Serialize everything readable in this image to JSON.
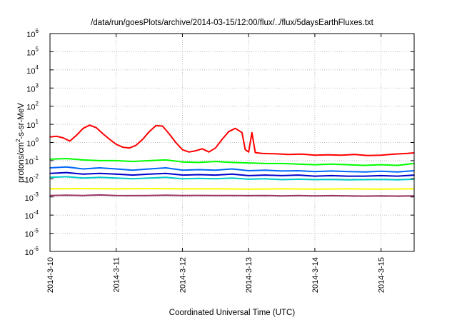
{
  "chart_data": {
    "type": "line",
    "title": "/data/run/goesPlots/archive/2014-03-15/12:00/flux/../flux/5daysEarthFluxes.txt",
    "xlabel": "Coordinated Universal Time (UTC)",
    "ylabel": "protons/cm²-s-sr-MeV",
    "ylabel_parts": {
      "pre": "protons/cm",
      "sup": "2",
      "post": "-s-sr-MeV"
    },
    "xlim": [
      0,
      5.5
    ],
    "ylim_log10": [
      -6,
      6
    ],
    "yscale": "log",
    "grid": true,
    "x_tick_positions": [
      0,
      1,
      2,
      3,
      4,
      5
    ],
    "x_tick_labels": [
      "2014-3-10",
      "2014-3-11",
      "2014-3-12",
      "2014-3-13",
      "2014-3-14",
      "2014-3-15"
    ],
    "y_tick_exponents": [
      -6,
      -5,
      -4,
      -3,
      -2,
      -1,
      0,
      1,
      2,
      3,
      4,
      5,
      6
    ],
    "y_tick_base": "10",
    "series": [
      {
        "color": "#ff0000",
        "x": [
          0,
          0.1,
          0.2,
          0.3,
          0.4,
          0.5,
          0.6,
          0.7,
          0.8,
          0.9,
          1.0,
          1.1,
          1.2,
          1.3,
          1.4,
          1.5,
          1.6,
          1.7,
          1.8,
          1.9,
          2.0,
          2.1,
          2.2,
          2.3,
          2.4,
          2.5,
          2.6,
          2.7,
          2.8,
          2.9,
          2.95,
          3.0,
          3.05,
          3.1,
          3.2,
          3.4,
          3.6,
          3.8,
          4.0,
          4.2,
          4.4,
          4.6,
          4.8,
          5.0,
          5.2,
          5.4,
          5.5
        ],
        "y": [
          2.0,
          2.2,
          1.8,
          1.2,
          2.5,
          6.0,
          9.0,
          6.5,
          3.0,
          1.5,
          0.8,
          0.55,
          0.5,
          0.7,
          1.5,
          4.0,
          8.5,
          8.0,
          3.0,
          1.0,
          0.4,
          0.3,
          0.35,
          0.45,
          0.3,
          0.5,
          1.5,
          4.0,
          6.0,
          3.5,
          0.4,
          0.3,
          3.5,
          0.28,
          0.25,
          0.24,
          0.22,
          0.23,
          0.2,
          0.21,
          0.2,
          0.22,
          0.19,
          0.2,
          0.23,
          0.25,
          0.27
        ]
      },
      {
        "color": "#00ff00",
        "x": [
          0,
          0.25,
          0.5,
          0.75,
          1.0,
          1.25,
          1.5,
          1.75,
          2.0,
          2.25,
          2.5,
          2.75,
          3.0,
          3.25,
          3.5,
          3.75,
          4.0,
          4.25,
          4.5,
          4.75,
          5.0,
          5.25,
          5.5
        ],
        "y": [
          0.12,
          0.13,
          0.11,
          0.1,
          0.1,
          0.09,
          0.1,
          0.11,
          0.085,
          0.08,
          0.09,
          0.08,
          0.075,
          0.07,
          0.07,
          0.065,
          0.06,
          0.065,
          0.06,
          0.055,
          0.06,
          0.055,
          0.07
        ]
      },
      {
        "color": "#0066ff",
        "x": [
          0,
          0.25,
          0.5,
          0.75,
          1.0,
          1.25,
          1.5,
          1.75,
          2.0,
          2.25,
          2.5,
          2.75,
          3.0,
          3.25,
          3.5,
          3.75,
          4.0,
          4.25,
          4.5,
          4.75,
          5.0,
          5.25,
          5.5
        ],
        "y": [
          0.04,
          0.045,
          0.035,
          0.04,
          0.035,
          0.03,
          0.035,
          0.04,
          0.03,
          0.032,
          0.03,
          0.035,
          0.028,
          0.03,
          0.027,
          0.028,
          0.025,
          0.027,
          0.025,
          0.024,
          0.026,
          0.024,
          0.028
        ]
      },
      {
        "color": "#00cccc",
        "x": [
          0,
          0.25,
          0.5,
          0.75,
          1.0,
          1.25,
          1.5,
          1.75,
          2.0,
          2.25,
          2.5,
          2.75,
          3.0,
          3.25,
          3.5,
          3.75,
          4.0,
          4.25,
          4.5,
          4.75,
          5.0,
          5.25,
          5.5
        ],
        "y": [
          0.012,
          0.013,
          0.011,
          0.012,
          0.011,
          0.01,
          0.011,
          0.012,
          0.01,
          0.0105,
          0.01,
          0.011,
          0.0095,
          0.01,
          0.009,
          0.0095,
          0.009,
          0.0092,
          0.0088,
          0.009,
          0.0092,
          0.0088,
          0.0095
        ]
      },
      {
        "color": "#0000cc",
        "x": [
          0,
          0.25,
          0.5,
          0.75,
          1.0,
          1.25,
          1.5,
          1.75,
          2.0,
          2.25,
          2.5,
          2.75,
          3.0,
          3.25,
          3.5,
          3.75,
          4.0,
          4.25,
          4.5,
          4.75,
          5.0,
          5.25,
          5.5
        ],
        "y": [
          0.02,
          0.022,
          0.018,
          0.02,
          0.018,
          0.016,
          0.018,
          0.02,
          0.016,
          0.017,
          0.016,
          0.018,
          0.015,
          0.016,
          0.015,
          0.016,
          0.014,
          0.015,
          0.014,
          0.014,
          0.015,
          0.014,
          0.016
        ]
      },
      {
        "color": "#ffff00",
        "x": [
          0,
          0.5,
          1.0,
          1.5,
          2.0,
          2.5,
          3.0,
          3.5,
          4.0,
          4.5,
          5.0,
          5.5
        ],
        "y": [
          0.0028,
          0.0029,
          0.0028,
          0.0029,
          0.0028,
          0.0028,
          0.0027,
          0.0028,
          0.0027,
          0.0028,
          0.0027,
          0.0028
        ]
      },
      {
        "color": "#993366",
        "x": [
          0,
          0.25,
          0.5,
          0.75,
          1.0,
          1.25,
          1.5,
          1.75,
          2.0,
          2.25,
          2.5,
          2.75,
          3.0,
          3.25,
          3.5,
          3.75,
          4.0,
          4.25,
          4.5,
          4.75,
          5.0,
          5.25,
          5.5
        ],
        "y": [
          0.0012,
          0.00125,
          0.0012,
          0.0013,
          0.0012,
          0.00118,
          0.0012,
          0.00125,
          0.0012,
          0.00122,
          0.0012,
          0.0012,
          0.00118,
          0.0012,
          0.00115,
          0.0012,
          0.00115,
          0.00118,
          0.00115,
          0.00112,
          0.00115,
          0.00112,
          0.00115
        ]
      }
    ]
  }
}
